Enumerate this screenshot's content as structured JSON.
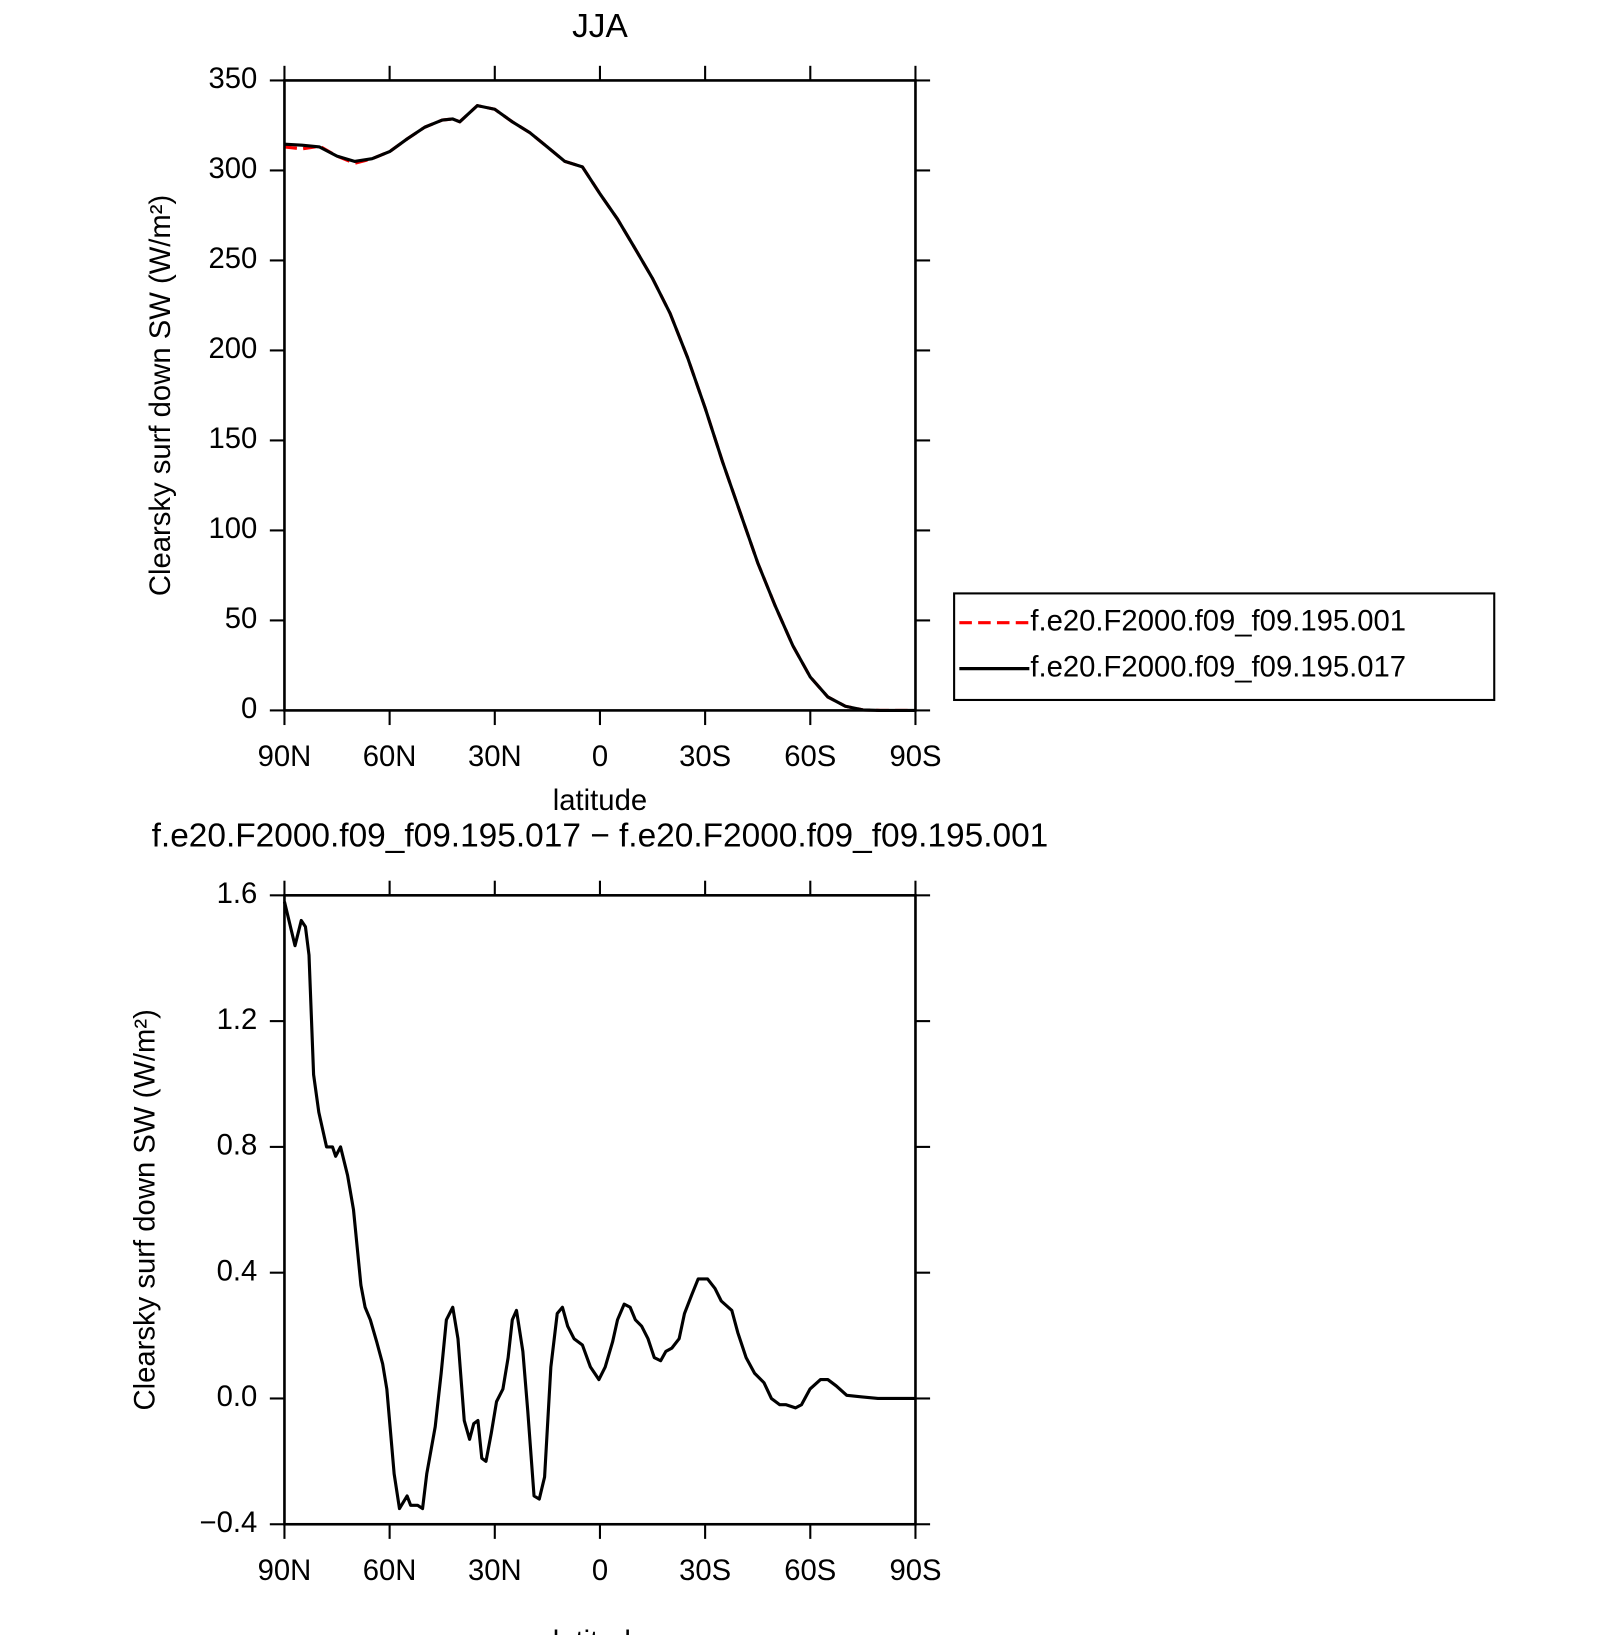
{
  "chart_data": [
    {
      "type": "line",
      "title": "JJA",
      "xlabel": "latitude",
      "ylabel": "Clearsky surf down SW (W/m²)",
      "x": [
        90,
        85,
        80,
        75,
        70,
        65,
        60,
        55,
        50,
        45,
        42,
        40,
        35,
        30,
        25,
        20,
        15,
        10,
        5,
        0,
        -5,
        -10,
        -15,
        -20,
        -25,
        -30,
        -35,
        -40,
        -45,
        -50,
        -55,
        -60,
        -65,
        -70,
        -75,
        -80,
        -85,
        -90
      ],
      "series": [
        {
          "name": "f.e20.F2000.f09_f09.195.001",
          "color": "#ff0000",
          "dash": true,
          "values": [
            313,
            312,
            313.5,
            308,
            304,
            306.5,
            310.5,
            317.5,
            324,
            328,
            328.6,
            327,
            336,
            334,
            327,
            321,
            313,
            305,
            302,
            287,
            273,
            256.6,
            240,
            220.6,
            196,
            168,
            138,
            110,
            82,
            58,
            36,
            18.6,
            7.5,
            2.3,
            0.3,
            0,
            0,
            0
          ]
        },
        {
          "name": "f.e20.F2000.f09_f09.195.017",
          "color": "#000000",
          "dash": false,
          "values": [
            314.6,
            314,
            313,
            308,
            305,
            306.5,
            310.5,
            317.5,
            324,
            328,
            328.6,
            327,
            336,
            334,
            327,
            321,
            313,
            305,
            302,
            287,
            273,
            256.6,
            240,
            220.6,
            196,
            168,
            138,
            110,
            82,
            58,
            36,
            18.6,
            7.5,
            2.3,
            0.3,
            0,
            0,
            0
          ]
        }
      ],
      "xlim": [
        90,
        -90
      ],
      "xticks": [
        {
          "value": 90,
          "label": "90N"
        },
        {
          "value": 60,
          "label": "60N"
        },
        {
          "value": 30,
          "label": "30N"
        },
        0,
        {
          "value": -30,
          "label": "30S"
        },
        {
          "value": -60,
          "label": "60S"
        },
        {
          "value": -90,
          "label": "90S"
        }
      ],
      "ylim": [
        0,
        350
      ],
      "yticks": [
        0,
        50,
        100,
        150,
        200,
        250,
        300,
        350
      ],
      "legend": "right"
    },
    {
      "type": "line",
      "title": "f.e20.F2000.f09_f09.195.017 − f.e20.F2000.f09_f09.195.001",
      "xlabel": "latitude",
      "ylabel": "Clearsky surf down SW (W/m²)",
      "x": [
        90,
        87,
        85.2,
        84,
        83,
        81.7,
        80.2,
        78,
        76.3,
        75.4,
        74,
        72,
        70.3,
        68.2,
        67,
        65.5,
        63.7,
        62,
        60.8,
        58.7,
        57.2,
        55,
        54,
        52,
        50.6,
        49.4,
        47,
        45.3,
        43.8,
        42,
        40.5,
        38.7,
        37.2,
        36,
        34.8,
        33.7,
        32.5,
        31,
        29.5,
        27.7,
        26.2,
        25,
        23.8,
        22,
        20.6,
        18.8,
        17.3,
        15.8,
        14,
        12.2,
        10.7,
        9.2,
        7.4,
        5,
        2.7,
        0.3,
        -1.5,
        -3.6,
        -5,
        -6.9,
        -8.6,
        -10.1,
        -11.9,
        -13.7,
        -15.5,
        -17.3,
        -18.8,
        -20.5,
        -22.6,
        -24.1,
        -26.2,
        -28,
        -30.7,
        -32.8,
        -34.6,
        -37.6,
        -39.3,
        -41.7,
        -44.1,
        -46.8,
        -48.9,
        -51.3,
        -53.1,
        -55.8,
        -57.5,
        -59.9,
        -62.9,
        -65,
        -67.4,
        -70.4,
        -74.8,
        -79.3,
        -90
      ],
      "series": [
        {
          "name": "f.e20.F2000.f09_f09.195.017 − f.e20.F2000.f09_f09.195.001",
          "color": "#000000",
          "values": [
            1.58,
            1.44,
            1.52,
            1.5,
            1.41,
            1.03,
            0.91,
            0.8,
            0.8,
            0.77,
            0.8,
            0.71,
            0.6,
            0.36,
            0.29,
            0.25,
            0.18,
            0.11,
            0.03,
            -0.24,
            -0.35,
            -0.31,
            -0.34,
            -0.34,
            -0.35,
            -0.24,
            -0.09,
            0.08,
            0.25,
            0.29,
            0.19,
            -0.07,
            -0.13,
            -0.08,
            -0.07,
            -0.19,
            -0.2,
            -0.11,
            -0.01,
            0.03,
            0.13,
            0.25,
            0.28,
            0.15,
            -0.04,
            -0.31,
            -0.32,
            -0.25,
            0.1,
            0.27,
            0.29,
            0.23,
            0.19,
            0.17,
            0.1,
            0.06,
            0.1,
            0.18,
            0.25,
            0.3,
            0.29,
            0.25,
            0.23,
            0.19,
            0.13,
            0.12,
            0.15,
            0.16,
            0.19,
            0.27,
            0.33,
            0.38,
            0.38,
            0.35,
            0.31,
            0.28,
            0.21,
            0.13,
            0.08,
            0.05,
            0,
            -0.02,
            -0.02,
            -0.03,
            -0.02,
            0.03,
            0.06,
            0.06,
            0.04,
            0.01,
            0.005,
            0,
            0
          ]
        }
      ],
      "xlim": [
        90,
        -90
      ],
      "xticks": [
        {
          "value": 90,
          "label": "90N"
        },
        {
          "value": 60,
          "label": "60N"
        },
        {
          "value": 30,
          "label": "30N"
        },
        0,
        {
          "value": -30,
          "label": "30S"
        },
        {
          "value": -60,
          "label": "60S"
        },
        {
          "value": -90,
          "label": "90S"
        }
      ],
      "ylim": [
        -0.4,
        1.6
      ],
      "yticks": [
        {
          "value": -0.4,
          "label": "−0.4"
        },
        {
          "value": 0,
          "label": "0.0"
        },
        0.4,
        0.8,
        1.2,
        1.6
      ]
    }
  ]
}
